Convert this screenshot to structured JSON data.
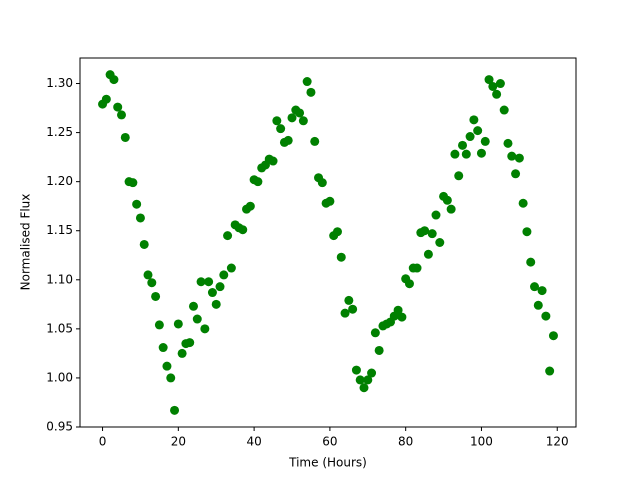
{
  "chart_data": {
    "type": "scatter",
    "xlabel": "Time (Hours)",
    "ylabel": "Normalised Flux",
    "series": [
      {
        "color": "#008000",
        "x": [
          0,
          1,
          2,
          3,
          4,
          5,
          6,
          7,
          8,
          9,
          10,
          11,
          12,
          13,
          14,
          15,
          16,
          17,
          18,
          19,
          20,
          21,
          22,
          23,
          24,
          25,
          26,
          27,
          28,
          29,
          30,
          31,
          32,
          33,
          34,
          35,
          36,
          37,
          38,
          39,
          40,
          41,
          42,
          43,
          44,
          45,
          46,
          47,
          48,
          49,
          50,
          51,
          52,
          53,
          54,
          55,
          56,
          57,
          58,
          59,
          60,
          61,
          62,
          63,
          64,
          65,
          66,
          67,
          68,
          69,
          70,
          71,
          72,
          73,
          74,
          75,
          76,
          77,
          78,
          79,
          80,
          81,
          82,
          83,
          84,
          85,
          86,
          87,
          88,
          89,
          90,
          91,
          92,
          93,
          94,
          95,
          96,
          97,
          98,
          99,
          100,
          101,
          102,
          103,
          104,
          105,
          106,
          107,
          108,
          109,
          110,
          111,
          112,
          113,
          114,
          115,
          116,
          117,
          118,
          119
        ],
        "values": [
          1.279,
          1.284,
          1.309,
          1.304,
          1.276,
          1.268,
          1.245,
          1.2,
          1.199,
          1.177,
          1.163,
          1.136,
          1.105,
          1.097,
          1.083,
          1.054,
          1.031,
          1.012,
          1.0,
          0.967,
          1.055,
          1.025,
          1.035,
          1.036,
          1.073,
          1.06,
          1.098,
          1.05,
          1.098,
          1.087,
          1.075,
          1.093,
          1.105,
          1.145,
          1.112,
          1.156,
          1.153,
          1.151,
          1.172,
          1.175,
          1.202,
          1.2,
          1.214,
          1.217,
          1.223,
          1.221,
          1.262,
          1.254,
          1.24,
          1.242,
          1.265,
          1.273,
          1.27,
          1.262,
          1.302,
          1.291,
          1.241,
          1.204,
          1.199,
          1.178,
          1.18,
          1.145,
          1.149,
          1.123,
          1.066,
          1.079,
          1.07,
          1.008,
          0.998,
          0.99,
          0.998,
          1.005,
          1.046,
          1.028,
          1.053,
          1.055,
          1.057,
          1.063,
          1.069,
          1.062,
          1.101,
          1.096,
          1.112,
          1.112,
          1.148,
          1.15,
          1.126,
          1.147,
          1.166,
          1.138,
          1.185,
          1.181,
          1.172,
          1.228,
          1.206,
          1.237,
          1.228,
          1.246,
          1.263,
          1.252,
          1.229,
          1.241,
          1.304,
          1.297,
          1.289,
          1.3,
          1.273,
          1.239,
          1.226,
          1.208,
          1.224,
          1.178,
          1.149,
          1.118,
          1.093,
          1.074,
          1.089,
          1.063,
          1.007,
          1.043
        ]
      }
    ],
    "xlim": [
      -5.95,
      124.95
    ],
    "ylim": [
      0.95,
      1.326
    ],
    "xticks": [
      0,
      20,
      40,
      60,
      80,
      100,
      120
    ],
    "yticks": [
      0.95,
      {
        "value": 1.0,
        "label": "1.00"
      },
      1.05,
      {
        "value": 1.1,
        "label": "1.10"
      },
      1.15,
      {
        "value": 1.2,
        "label": "1.20"
      },
      1.25,
      {
        "value": 1.3,
        "label": "1.30"
      }
    ]
  }
}
